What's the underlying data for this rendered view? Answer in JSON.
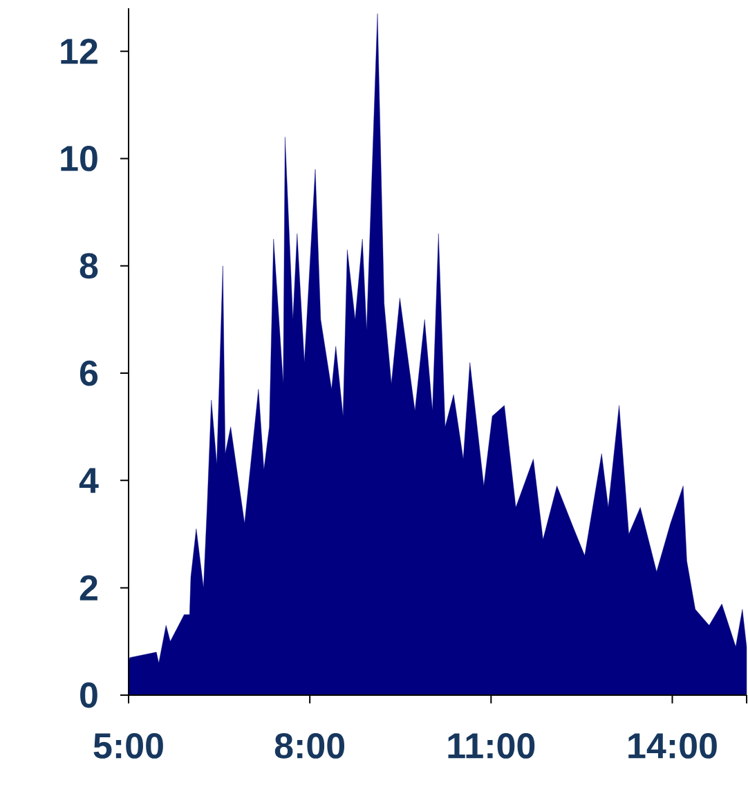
{
  "chart_data": {
    "type": "area",
    "color": "#000080",
    "x": [
      5.0,
      5.02,
      5.46,
      5.5,
      5.62,
      5.69,
      5.92,
      6.01,
      6.03,
      6.12,
      6.24,
      6.3,
      6.37,
      6.46,
      6.56,
      6.6,
      6.69,
      6.92,
      7.15,
      7.24,
      7.33,
      7.4,
      7.56,
      7.59,
      7.72,
      7.79,
      7.91,
      8.09,
      8.18,
      8.36,
      8.43,
      8.55,
      8.62,
      8.75,
      8.87,
      8.94,
      9.12,
      9.23,
      9.35,
      9.49,
      9.74,
      9.9,
      10.03,
      10.13,
      10.24,
      10.38,
      10.54,
      10.65,
      10.88,
      11.02,
      11.22,
      11.41,
      11.7,
      11.86,
      12.09,
      12.37,
      12.55,
      12.83,
      12.94,
      13.12,
      13.28,
      13.47,
      13.74,
      13.97,
      14.18,
      14.24,
      14.38,
      14.61,
      14.82,
      15.05,
      15.16,
      15.23
    ],
    "values": [
      0.6,
      0.7,
      0.8,
      0.6,
      1.3,
      1.0,
      1.5,
      1.5,
      2.2,
      3.1,
      2.0,
      3.5,
      5.5,
      4.3,
      8.0,
      4.5,
      5.0,
      3.2,
      5.7,
      4.2,
      5.0,
      8.5,
      5.8,
      10.4,
      7.0,
      8.6,
      6.2,
      9.8,
      7.0,
      5.7,
      6.5,
      5.2,
      8.3,
      7.0,
      8.5,
      6.8,
      12.7,
      7.3,
      5.8,
      7.4,
      5.3,
      7.0,
      5.3,
      8.6,
      5.0,
      5.6,
      4.4,
      6.2,
      3.9,
      5.2,
      5.4,
      3.5,
      4.4,
      2.9,
      3.9,
      3.1,
      2.6,
      4.5,
      3.5,
      5.4,
      3.0,
      3.5,
      2.3,
      3.2,
      3.9,
      2.5,
      1.6,
      1.3,
      1.7,
      0.9,
      1.6,
      0.9
    ],
    "xlim": [
      5,
      15.23
    ],
    "xticks": [
      {
        "value": 5,
        "label": "5:00"
      },
      {
        "value": 8,
        "label": "8:00"
      },
      {
        "value": 11,
        "label": "11:00"
      },
      {
        "value": 14,
        "label": "14:00"
      },
      {
        "value": 15.23,
        "label": null
      }
    ],
    "ylim": [
      0,
      12.8
    ],
    "yticks": [
      0,
      2,
      4,
      6,
      8,
      10,
      12
    ]
  }
}
